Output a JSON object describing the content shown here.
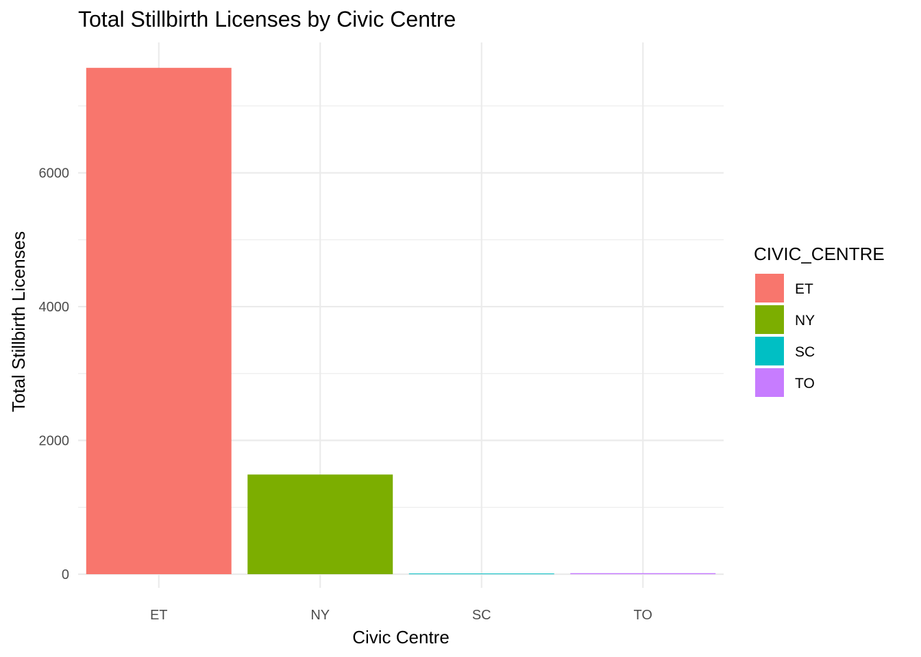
{
  "chart_data": {
    "type": "bar",
    "title": "Total Stillbirth Licenses by Civic Centre",
    "xlabel": "Civic Centre",
    "ylabel": "Total Stillbirth Licenses",
    "categories": [
      "ET",
      "NY",
      "SC",
      "TO"
    ],
    "values": [
      7570,
      1490,
      10,
      15
    ],
    "colors": [
      "#F8766D",
      "#7CAE00",
      "#00BFC4",
      "#C77CFF"
    ],
    "ylim": [
      0,
      7950
    ],
    "yticks": [
      0,
      2000,
      4000,
      6000
    ],
    "yticks_minor": [
      1000,
      3000,
      5000,
      7000
    ],
    "grid": true,
    "legend": {
      "title": "CIVIC_CENTRE",
      "position": "right",
      "entries": [
        "ET",
        "NY",
        "SC",
        "TO"
      ]
    }
  }
}
